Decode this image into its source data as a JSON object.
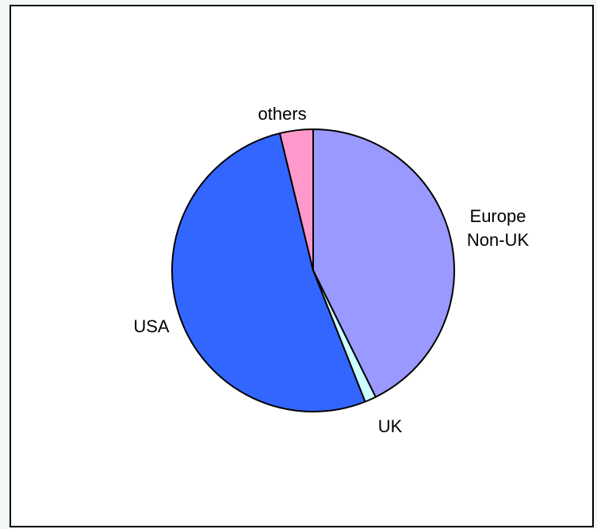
{
  "chart_data": {
    "type": "pie",
    "slices": [
      {
        "label": "Europe Non-UK",
        "label_lines": [
          "Europe",
          "Non-UK"
        ],
        "value": 42.7,
        "color": "#9999ff"
      },
      {
        "label": "UK",
        "label_lines": [
          "UK"
        ],
        "value": 1.3,
        "color": "#ccffff"
      },
      {
        "label": "USA",
        "label_lines": [
          "USA"
        ],
        "value": 52.2,
        "color": "#3366ff"
      },
      {
        "label": "others",
        "label_lines": [
          "others"
        ],
        "value": 3.8,
        "color": "#ff99cc"
      }
    ],
    "start_angle": "12 o'clock",
    "direction": "clockwise",
    "legend": "none"
  }
}
